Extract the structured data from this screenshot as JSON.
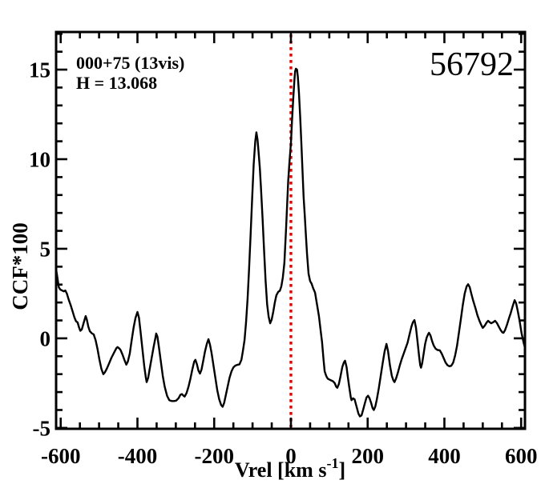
{
  "chart_data": {
    "type": "line",
    "object_id": "56792",
    "annotation_line1": "000+75 (13vis)",
    "annotation_line2": "H = 13.068",
    "xlabel_main": "Vrel [km s",
    "xlabel_sup": "-1",
    "xlabel_close": "]",
    "ylabel": "CCF*100",
    "xlim": [
      -612,
      610
    ],
    "ylim": [
      -5.05,
      17.1
    ],
    "x_major_ticks": [
      -600,
      -400,
      -200,
      0,
      200,
      400,
      600
    ],
    "x_minor_step": 50,
    "y_major_ticks": [
      -5,
      0,
      5,
      10,
      15
    ],
    "y_minor_step": 1,
    "grid": false,
    "frame_color": "#000000",
    "line_color": "#000000",
    "ref_line": {
      "x": 0,
      "color": "#ee0000",
      "style": "dotted"
    },
    "series": [
      {
        "name": "CCF",
        "points": [
          [
            -612,
            3.87
          ],
          [
            -608,
            3.3
          ],
          [
            -605,
            2.85
          ],
          [
            -601,
            2.72
          ],
          [
            -597,
            2.68
          ],
          [
            -592,
            2.62
          ],
          [
            -588,
            2.67
          ],
          [
            -584,
            2.5
          ],
          [
            -579,
            2.15
          ],
          [
            -574,
            1.85
          ],
          [
            -569,
            1.5
          ],
          [
            -564,
            1.15
          ],
          [
            -560,
            0.95
          ],
          [
            -556,
            0.89
          ],
          [
            -552,
            0.6
          ],
          [
            -549,
            0.42
          ],
          [
            -545,
            0.5
          ],
          [
            -541,
            0.8
          ],
          [
            -537,
            1.1
          ],
          [
            -535,
            1.24
          ],
          [
            -532,
            1.05
          ],
          [
            -528,
            0.65
          ],
          [
            -524,
            0.4
          ],
          [
            -519,
            0.28
          ],
          [
            -514,
            0.22
          ],
          [
            -509,
            -0.1
          ],
          [
            -504,
            -0.6
          ],
          [
            -499,
            -1.2
          ],
          [
            -494,
            -1.7
          ],
          [
            -489,
            -2.0
          ],
          [
            -485,
            -1.9
          ],
          [
            -480,
            -1.7
          ],
          [
            -474,
            -1.4
          ],
          [
            -468,
            -1.1
          ],
          [
            -461,
            -0.8
          ],
          [
            -455,
            -0.55
          ],
          [
            -452,
            -0.49
          ],
          [
            -448,
            -0.55
          ],
          [
            -444,
            -0.65
          ],
          [
            -439,
            -0.9
          ],
          [
            -434,
            -1.2
          ],
          [
            -429,
            -1.47
          ],
          [
            -425,
            -1.3
          ],
          [
            -420,
            -0.85
          ],
          [
            -415,
            -0.1
          ],
          [
            -410,
            0.6
          ],
          [
            -405,
            1.15
          ],
          [
            -400,
            1.47
          ],
          [
            -396,
            1.15
          ],
          [
            -392,
            0.4
          ],
          [
            -387,
            -0.6
          ],
          [
            -382,
            -1.6
          ],
          [
            -378,
            -2.2
          ],
          [
            -376,
            -2.44
          ],
          [
            -372,
            -2.2
          ],
          [
            -368,
            -1.7
          ],
          [
            -363,
            -1.1
          ],
          [
            -358,
            -0.5
          ],
          [
            -353,
            0.05
          ],
          [
            -351,
            0.27
          ],
          [
            -348,
            0.1
          ],
          [
            -344,
            -0.5
          ],
          [
            -339,
            -1.3
          ],
          [
            -334,
            -2.1
          ],
          [
            -329,
            -2.7
          ],
          [
            -323,
            -3.2
          ],
          [
            -317,
            -3.45
          ],
          [
            -311,
            -3.5
          ],
          [
            -305,
            -3.5
          ],
          [
            -299,
            -3.48
          ],
          [
            -293,
            -3.35
          ],
          [
            -288,
            -3.15
          ],
          [
            -284,
            -3.11
          ],
          [
            -280,
            -3.2
          ],
          [
            -277,
            -3.25
          ],
          [
            -272,
            -3.05
          ],
          [
            -267,
            -2.7
          ],
          [
            -262,
            -2.25
          ],
          [
            -257,
            -1.75
          ],
          [
            -252,
            -1.3
          ],
          [
            -249,
            -1.2
          ],
          [
            -245,
            -1.45
          ],
          [
            -241,
            -1.8
          ],
          [
            -237,
            -1.97
          ],
          [
            -233,
            -1.75
          ],
          [
            -229,
            -1.3
          ],
          [
            -224,
            -0.75
          ],
          [
            -219,
            -0.3
          ],
          [
            -215,
            -0.05
          ],
          [
            -211,
            -0.35
          ],
          [
            -207,
            -0.8
          ],
          [
            -202,
            -1.5
          ],
          [
            -197,
            -2.2
          ],
          [
            -192,
            -2.9
          ],
          [
            -187,
            -3.4
          ],
          [
            -182,
            -3.72
          ],
          [
            -178,
            -3.82
          ],
          [
            -174,
            -3.6
          ],
          [
            -170,
            -3.2
          ],
          [
            -165,
            -2.7
          ],
          [
            -160,
            -2.2
          ],
          [
            -155,
            -1.85
          ],
          [
            -150,
            -1.62
          ],
          [
            -145,
            -1.52
          ],
          [
            -140,
            -1.48
          ],
          [
            -134,
            -1.45
          ],
          [
            -129,
            -1.2
          ],
          [
            -125,
            -0.7
          ],
          [
            -121,
            -0.1
          ],
          [
            -117,
            0.9
          ],
          [
            -113,
            2.2
          ],
          [
            -109,
            3.9
          ],
          [
            -105,
            5.8
          ],
          [
            -101,
            7.8
          ],
          [
            -97,
            9.7
          ],
          [
            -93,
            11.0
          ],
          [
            -90,
            11.5
          ],
          [
            -87,
            11.1
          ],
          [
            -84,
            10.3
          ],
          [
            -81,
            9.5
          ],
          [
            -78,
            8.4
          ],
          [
            -74,
            6.7
          ],
          [
            -70,
            4.9
          ],
          [
            -66,
            3.2
          ],
          [
            -62,
            1.9
          ],
          [
            -58,
            1.2
          ],
          [
            -54,
            0.84
          ],
          [
            -50,
            1.05
          ],
          [
            -46,
            1.5
          ],
          [
            -42,
            2.0
          ],
          [
            -38,
            2.4
          ],
          [
            -33,
            2.6
          ],
          [
            -29,
            2.65
          ],
          [
            -25,
            2.9
          ],
          [
            -21,
            3.4
          ],
          [
            -17,
            4.2
          ],
          [
            -13,
            6.0
          ],
          [
            -10,
            7.4
          ],
          [
            -7,
            8.8
          ],
          [
            -4,
            9.8
          ],
          [
            0,
            10.9
          ],
          [
            3,
            12.2
          ],
          [
            6,
            13.4
          ],
          [
            9,
            14.4
          ],
          [
            11,
            14.9
          ],
          [
            13,
            15.05
          ],
          [
            16,
            15.0
          ],
          [
            18,
            14.6
          ],
          [
            21,
            13.7
          ],
          [
            24,
            12.4
          ],
          [
            27,
            11.0
          ],
          [
            30,
            9.5
          ],
          [
            33,
            7.9
          ],
          [
            36,
            6.9
          ],
          [
            39,
            5.8
          ],
          [
            42,
            4.7
          ],
          [
            46,
            3.6
          ],
          [
            50,
            3.2
          ],
          [
            54,
            3.05
          ],
          [
            58,
            2.8
          ],
          [
            63,
            2.55
          ],
          [
            68,
            1.9
          ],
          [
            73,
            1.25
          ],
          [
            78,
            0.35
          ],
          [
            81,
            -0.2
          ],
          [
            85,
            -1.2
          ],
          [
            88,
            -1.85
          ],
          [
            92,
            -2.1
          ],
          [
            96,
            -2.25
          ],
          [
            100,
            -2.3
          ],
          [
            105,
            -2.35
          ],
          [
            110,
            -2.4
          ],
          [
            114,
            -2.5
          ],
          [
            118,
            -2.7
          ],
          [
            121,
            -2.76
          ],
          [
            125,
            -2.55
          ],
          [
            129,
            -2.15
          ],
          [
            134,
            -1.6
          ],
          [
            138,
            -1.35
          ],
          [
            141,
            -1.25
          ],
          [
            145,
            -1.6
          ],
          [
            148,
            -2.1
          ],
          [
            152,
            -2.7
          ],
          [
            156,
            -3.3
          ],
          [
            158,
            -3.45
          ],
          [
            162,
            -3.35
          ],
          [
            166,
            -3.4
          ],
          [
            171,
            -3.8
          ],
          [
            176,
            -4.2
          ],
          [
            180,
            -4.36
          ],
          [
            184,
            -4.3
          ],
          [
            188,
            -4.0
          ],
          [
            193,
            -3.6
          ],
          [
            197,
            -3.3
          ],
          [
            201,
            -3.2
          ],
          [
            205,
            -3.35
          ],
          [
            209,
            -3.6
          ],
          [
            213,
            -3.9
          ],
          [
            216,
            -4.0
          ],
          [
            220,
            -3.8
          ],
          [
            224,
            -3.4
          ],
          [
            229,
            -2.8
          ],
          [
            234,
            -2.1
          ],
          [
            239,
            -1.4
          ],
          [
            244,
            -0.75
          ],
          [
            249,
            -0.31
          ],
          [
            253,
            -0.7
          ],
          [
            258,
            -1.5
          ],
          [
            263,
            -2.1
          ],
          [
            267,
            -2.35
          ],
          [
            270,
            -2.44
          ],
          [
            274,
            -2.25
          ],
          [
            279,
            -1.9
          ],
          [
            284,
            -1.5
          ],
          [
            289,
            -1.15
          ],
          [
            294,
            -0.85
          ],
          [
            299,
            -0.55
          ],
          [
            304,
            -0.25
          ],
          [
            309,
            0.2
          ],
          [
            314,
            0.65
          ],
          [
            318,
            0.9
          ],
          [
            322,
            1.02
          ],
          [
            326,
            0.6
          ],
          [
            330,
            -0.2
          ],
          [
            334,
            -1.0
          ],
          [
            337,
            -1.5
          ],
          [
            339,
            -1.64
          ],
          [
            342,
            -1.4
          ],
          [
            346,
            -0.85
          ],
          [
            350,
            -0.3
          ],
          [
            354,
            0.05
          ],
          [
            358,
            0.25
          ],
          [
            360,
            0.31
          ],
          [
            364,
            0.15
          ],
          [
            368,
            -0.15
          ],
          [
            372,
            -0.4
          ],
          [
            377,
            -0.58
          ],
          [
            382,
            -0.65
          ],
          [
            388,
            -0.67
          ],
          [
            393,
            -0.85
          ],
          [
            398,
            -1.1
          ],
          [
            403,
            -1.35
          ],
          [
            408,
            -1.5
          ],
          [
            413,
            -1.56
          ],
          [
            418,
            -1.53
          ],
          [
            423,
            -1.35
          ],
          [
            428,
            -0.95
          ],
          [
            433,
            -0.4
          ],
          [
            438,
            0.35
          ],
          [
            443,
            1.1
          ],
          [
            448,
            1.85
          ],
          [
            453,
            2.5
          ],
          [
            458,
            2.9
          ],
          [
            462,
            3.02
          ],
          [
            466,
            2.85
          ],
          [
            470,
            2.5
          ],
          [
            475,
            2.1
          ],
          [
            481,
            1.69
          ],
          [
            486,
            1.3
          ],
          [
            491,
            1.0
          ],
          [
            496,
            0.75
          ],
          [
            500,
            0.58
          ],
          [
            505,
            0.7
          ],
          [
            510,
            0.88
          ],
          [
            514,
            0.98
          ],
          [
            518,
            0.9
          ],
          [
            522,
            0.84
          ],
          [
            527,
            0.9
          ],
          [
            532,
            0.98
          ],
          [
            537,
            0.85
          ],
          [
            542,
            0.65
          ],
          [
            547,
            0.45
          ],
          [
            551,
            0.33
          ],
          [
            554,
            0.31
          ],
          [
            558,
            0.45
          ],
          [
            563,
            0.75
          ],
          [
            568,
            1.1
          ],
          [
            573,
            1.42
          ],
          [
            578,
            1.8
          ],
          [
            583,
            2.13
          ],
          [
            587,
            1.95
          ],
          [
            591,
            1.55
          ],
          [
            596,
            0.98
          ],
          [
            601,
            0.3
          ],
          [
            606,
            -0.2
          ],
          [
            610,
            -0.53
          ]
        ]
      }
    ]
  }
}
